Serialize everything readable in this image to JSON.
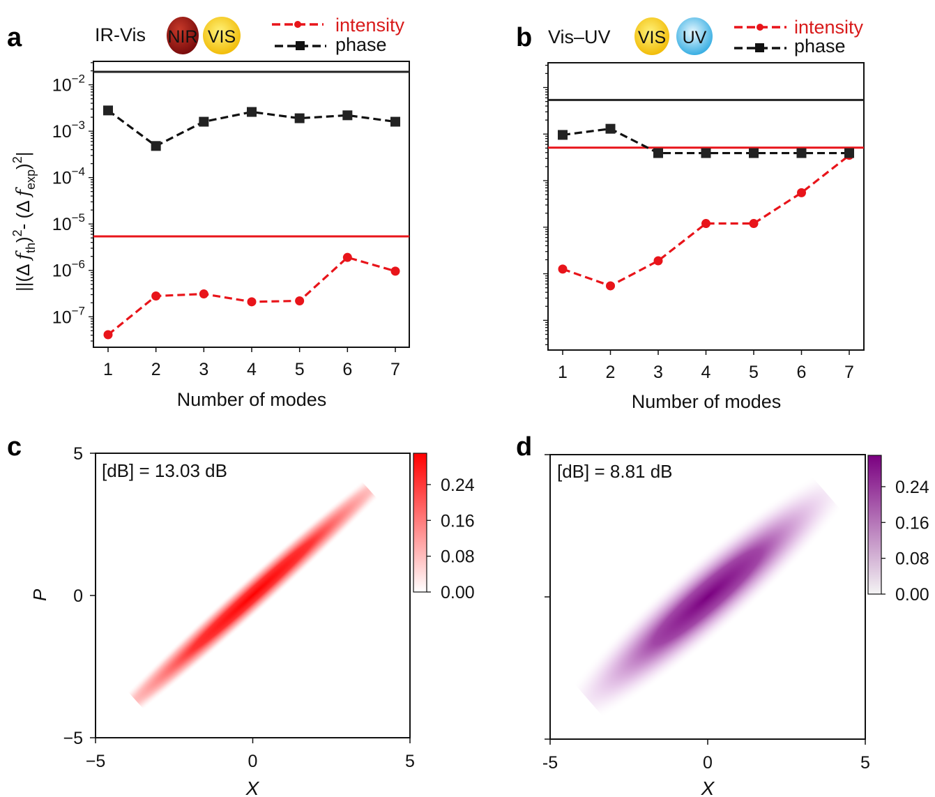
{
  "chart_data": [
    {
      "panel": "a",
      "type": "line",
      "title": "IR-Vis",
      "badges": [
        {
          "text": "NIR",
          "color": "#a01818"
        },
        {
          "text": "VIS",
          "color": "#f5d21a"
        }
      ],
      "xlabel": "Number of modes",
      "ylabel": {
        "prefix": "|(Δ ",
        "f1": "f",
        "sub1": "th",
        "mid": ")",
        "sup1": "2",
        "minus": "- (Δ ",
        "f2": "f",
        "sub2": "exp",
        "end": ")",
        "sup2": "2",
        "bar": "|"
      },
      "x": [
        1,
        2,
        3,
        4,
        5,
        6,
        7
      ],
      "xticks": [
        "1",
        "2",
        "3",
        "4",
        "5",
        "6",
        "7"
      ],
      "yscale": "log",
      "ylim": [
        2.2e-08,
        0.032
      ],
      "yticks": [
        {
          "exp": "−2",
          "value": 0.01
        },
        {
          "exp": "−3",
          "value": 0.001
        },
        {
          "exp": "−4",
          "value": 0.0001
        },
        {
          "exp": "−5",
          "value": 1e-05
        },
        {
          "exp": "−6",
          "value": 1e-06
        },
        {
          "exp": "−7",
          "value": 1e-07
        }
      ],
      "ytick_base": "10",
      "series": [
        {
          "name": "intensity",
          "color": "#e8141a",
          "marker": "circle",
          "values": [
            4.1e-08,
            2.8e-07,
            3.1e-07,
            2.1e-07,
            2.2e-07,
            1.9e-06,
            9.6e-07
          ],
          "hline": 5.4e-06
        },
        {
          "name": "phase",
          "color": "#111111",
          "marker": "square",
          "values": [
            0.0028,
            0.00048,
            0.0016,
            0.0026,
            0.0019,
            0.0022,
            0.0016
          ],
          "hline": 0.019
        }
      ],
      "legend": "top-right"
    },
    {
      "panel": "b",
      "type": "line",
      "title": "Vis–UV",
      "badges": [
        {
          "text": "VIS",
          "color": "#f5d21a"
        },
        {
          "text": "UV",
          "color": "#3fb6e6"
        }
      ],
      "xlabel": "Number of modes",
      "x": [
        1,
        2,
        3,
        4,
        5,
        6,
        7
      ],
      "xticks": [
        "1",
        "2",
        "3",
        "4",
        "5",
        "6",
        "7"
      ],
      "yscale": "log",
      "ylim": [
        2.3e-08,
        0.034
      ],
      "yticks_labeled": false,
      "series": [
        {
          "name": "intensity",
          "color": "#e8141a",
          "marker": "circle",
          "values": [
            1.26e-06,
            5.5e-07,
            1.9e-06,
            1.2e-05,
            1.2e-05,
            5.5e-05,
            0.00035
          ],
          "hline": 0.00051
        },
        {
          "name": "phase",
          "color": "#111111",
          "marker": "square",
          "values": [
            0.00096,
            0.0013,
            0.00039,
            0.00039,
            0.00039,
            0.00039,
            0.00039
          ],
          "hline": 0.0054
        }
      ],
      "legend": "top-right"
    },
    {
      "panel": "c",
      "type": "heatmap",
      "annotation": "[dB] = 13.03 dB",
      "xlabel": "X",
      "ylabel": "P",
      "xlim": [
        -5,
        5
      ],
      "ylim": [
        -5,
        5
      ],
      "xticks": [
        "−5",
        "0",
        "5"
      ],
      "yticks": [
        "5",
        "0",
        "−5"
      ],
      "colorbar": {
        "ticks": [
          "0.24",
          "0.16",
          "0.08",
          "0.00"
        ],
        "max": 0.31,
        "color": "#ff0000"
      },
      "distribution": "squeezed Gaussian along P = X"
    },
    {
      "panel": "d",
      "type": "heatmap",
      "annotation": "[dB] = 8.81 dB",
      "xlabel": "X",
      "xlim": [
        -5,
        5
      ],
      "ylim": [
        -5,
        5
      ],
      "xticks": [
        "-5",
        "0",
        "5"
      ],
      "colorbar": {
        "ticks": [
          "0.24",
          "0.16",
          "0.08",
          "0.00"
        ],
        "max": 0.31,
        "color": "#7a0080"
      },
      "distribution": "squeezed Gaussian along P = X"
    }
  ]
}
